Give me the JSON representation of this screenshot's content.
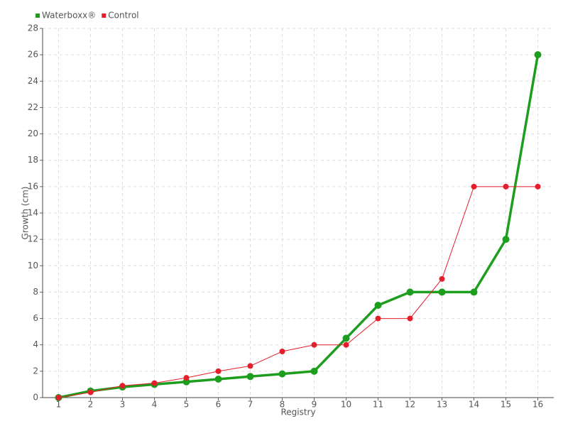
{
  "chart_data": {
    "type": "line",
    "x_label": "Registry",
    "y_label": "Growth (cm)",
    "categories": [
      "1",
      "2",
      "3",
      "4",
      "5",
      "6",
      "7",
      "8",
      "9",
      "10",
      "11",
      "12",
      "13",
      "14",
      "15",
      "16"
    ],
    "series": [
      {
        "name": "Waterboxx®",
        "color": "#1e9e1e",
        "values": [
          0,
          0.5,
          0.8,
          1.0,
          1.2,
          1.4,
          1.6,
          1.8,
          2.0,
          4.5,
          7,
          8,
          8,
          8,
          12,
          26
        ]
      },
      {
        "name": "Control",
        "color": "#e41f2b",
        "values": [
          0,
          0.4,
          0.9,
          1.1,
          1.5,
          2.0,
          2.4,
          3.5,
          4,
          4,
          6,
          6,
          9,
          16,
          16,
          16
        ]
      }
    ],
    "ylim": [
      0,
      28
    ],
    "yticks": [
      0,
      2,
      4,
      6,
      8,
      10,
      12,
      14,
      16,
      18,
      20,
      22,
      24,
      26,
      28
    ],
    "grid": true,
    "legend": "top-left"
  }
}
